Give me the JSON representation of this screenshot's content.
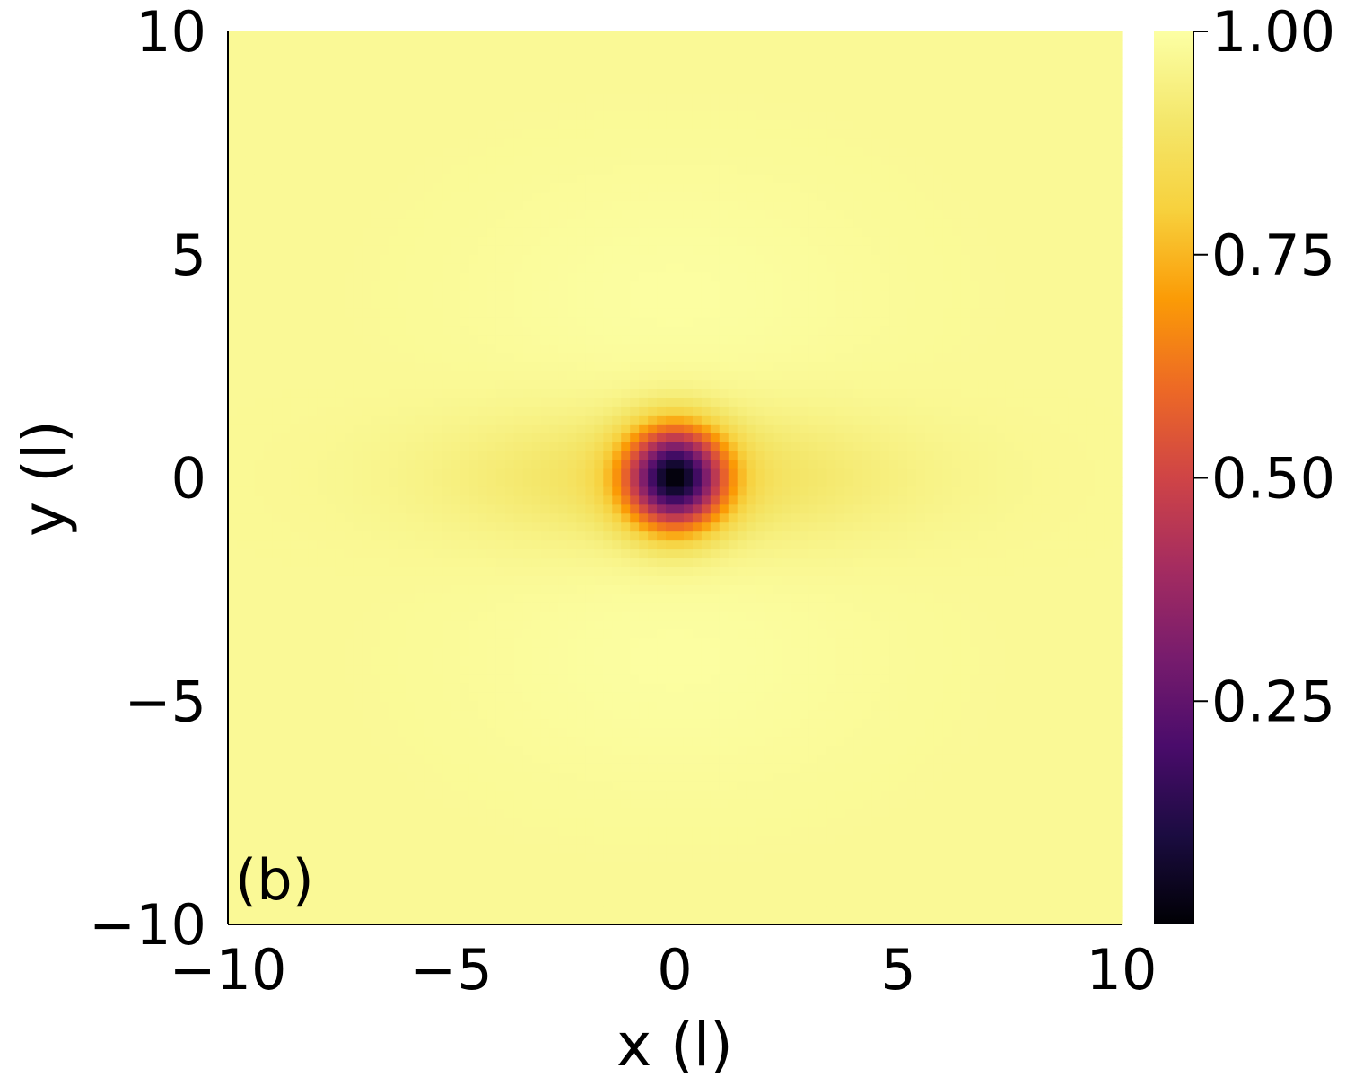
{
  "chart_data": {
    "type": "heatmap",
    "panel_label": "(b)",
    "xlabel": "x (l)",
    "ylabel": "y (l)",
    "xlim": [
      -10,
      10
    ],
    "ylim": [
      -10,
      10
    ],
    "x_ticks": [
      -10,
      -5,
      0,
      5,
      10
    ],
    "y_ticks": [
      -10,
      -5,
      0,
      5,
      10
    ],
    "x_tick_labels": [
      "−10",
      "−5",
      "0",
      "5",
      "10"
    ],
    "y_tick_labels": [
      "−10",
      "−5",
      "0",
      "5",
      "10"
    ],
    "grid": false,
    "colormap": "inferno",
    "colorbar": {
      "range": [
        0,
        1
      ],
      "ticks": [
        1.0,
        0.75,
        0.5,
        0.25
      ],
      "tick_labels": [
        "1.00",
        "0.75",
        "0.50",
        "0.25"
      ]
    },
    "field": {
      "description_values": "intensity 0 at origin (vortex core), rising to ~1.0 far away; elongated along x",
      "core_value": 0.0,
      "background_value": 0.98,
      "shoulder_value_along_x": 0.9
    }
  }
}
